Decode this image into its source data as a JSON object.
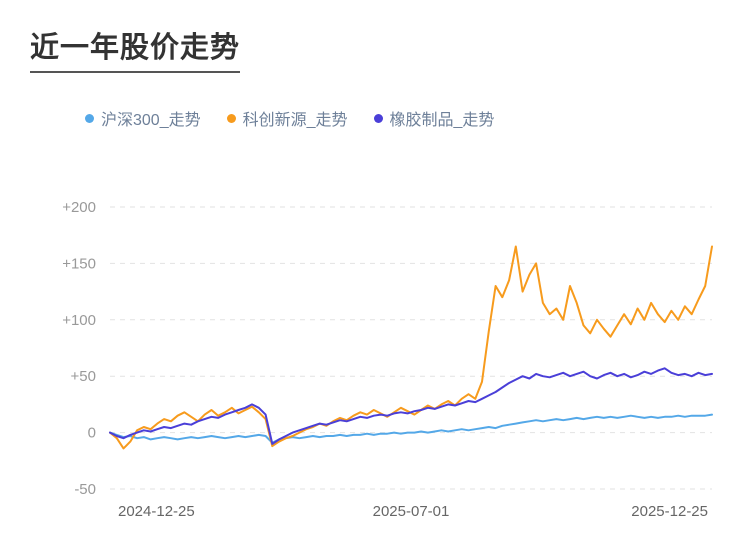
{
  "header": {
    "title": "近一年股价走势"
  },
  "chart_data": {
    "type": "line",
    "title": "近一年股价走势",
    "legend_position": "top-left",
    "grid": "horizontal-dashed",
    "background": "#ffffff",
    "ylim": [
      -50,
      200
    ],
    "yticks": [
      200,
      150,
      100,
      50,
      0,
      -50
    ],
    "ytick_labels": [
      "+200",
      "+150",
      "+100",
      "+50",
      "0",
      "-50"
    ],
    "xtick_labels": [
      "2024-12-25",
      "2025-07-01",
      "2025-12-25"
    ],
    "axis_label_color": "#999999",
    "x_label_color": "#666666",
    "gridline_color": "#e2e2e2",
    "series": [
      {
        "key": "hs300",
        "name": "沪深300_走势",
        "color": "#54a8e8",
        "values": [
          0,
          -2,
          -4,
          -3,
          -5,
          -4,
          -6,
          -5,
          -4,
          -5,
          -6,
          -5,
          -4,
          -5,
          -4,
          -3,
          -4,
          -5,
          -4,
          -3,
          -4,
          -3,
          -2,
          -3,
          -9,
          -6,
          -5,
          -4,
          -5,
          -4,
          -3,
          -4,
          -3,
          -3,
          -2,
          -3,
          -2,
          -2,
          -1,
          -2,
          -1,
          -1,
          0,
          -1,
          0,
          0,
          1,
          0,
          1,
          2,
          1,
          2,
          3,
          2,
          3,
          4,
          5,
          4,
          6,
          7,
          8,
          9,
          10,
          11,
          10,
          11,
          12,
          11,
          12,
          13,
          12,
          13,
          14,
          13,
          14,
          13,
          14,
          15,
          14,
          13,
          14,
          13,
          14,
          14,
          15,
          14,
          15,
          15,
          15,
          16
        ]
      },
      {
        "key": "kcxy",
        "name": "科创新源_走势",
        "color": "#f79b1d",
        "values": [
          0,
          -5,
          -14,
          -8,
          2,
          5,
          3,
          8,
          12,
          10,
          15,
          18,
          14,
          10,
          16,
          20,
          15,
          18,
          22,
          17,
          20,
          23,
          18,
          12,
          -12,
          -8,
          -5,
          -3,
          0,
          3,
          5,
          8,
          6,
          10,
          13,
          11,
          15,
          18,
          16,
          20,
          17,
          14,
          18,
          22,
          19,
          16,
          20,
          24,
          21,
          25,
          28,
          24,
          30,
          34,
          30,
          45,
          90,
          130,
          120,
          135,
          165,
          125,
          140,
          150,
          115,
          105,
          110,
          100,
          130,
          115,
          95,
          88,
          100,
          92,
          85,
          95,
          105,
          96,
          110,
          100,
          115,
          105,
          98,
          108,
          100,
          112,
          105,
          118,
          130,
          165
        ]
      },
      {
        "key": "rubber",
        "name": "橡胶制品_走势",
        "color": "#4a3fd8",
        "values": [
          0,
          -3,
          -5,
          -2,
          0,
          2,
          1,
          3,
          5,
          4,
          6,
          8,
          7,
          10,
          12,
          14,
          13,
          16,
          18,
          20,
          22,
          25,
          22,
          16,
          -10,
          -6,
          -3,
          0,
          2,
          4,
          6,
          8,
          7,
          9,
          11,
          10,
          12,
          14,
          13,
          15,
          16,
          15,
          17,
          18,
          17,
          19,
          20,
          22,
          21,
          23,
          25,
          24,
          26,
          28,
          27,
          30,
          33,
          36,
          40,
          44,
          47,
          50,
          48,
          52,
          50,
          49,
          51,
          53,
          50,
          52,
          54,
          50,
          48,
          51,
          53,
          50,
          52,
          49,
          51,
          54,
          52,
          55,
          57,
          53,
          51,
          52,
          50,
          53,
          51,
          52
        ]
      }
    ]
  }
}
